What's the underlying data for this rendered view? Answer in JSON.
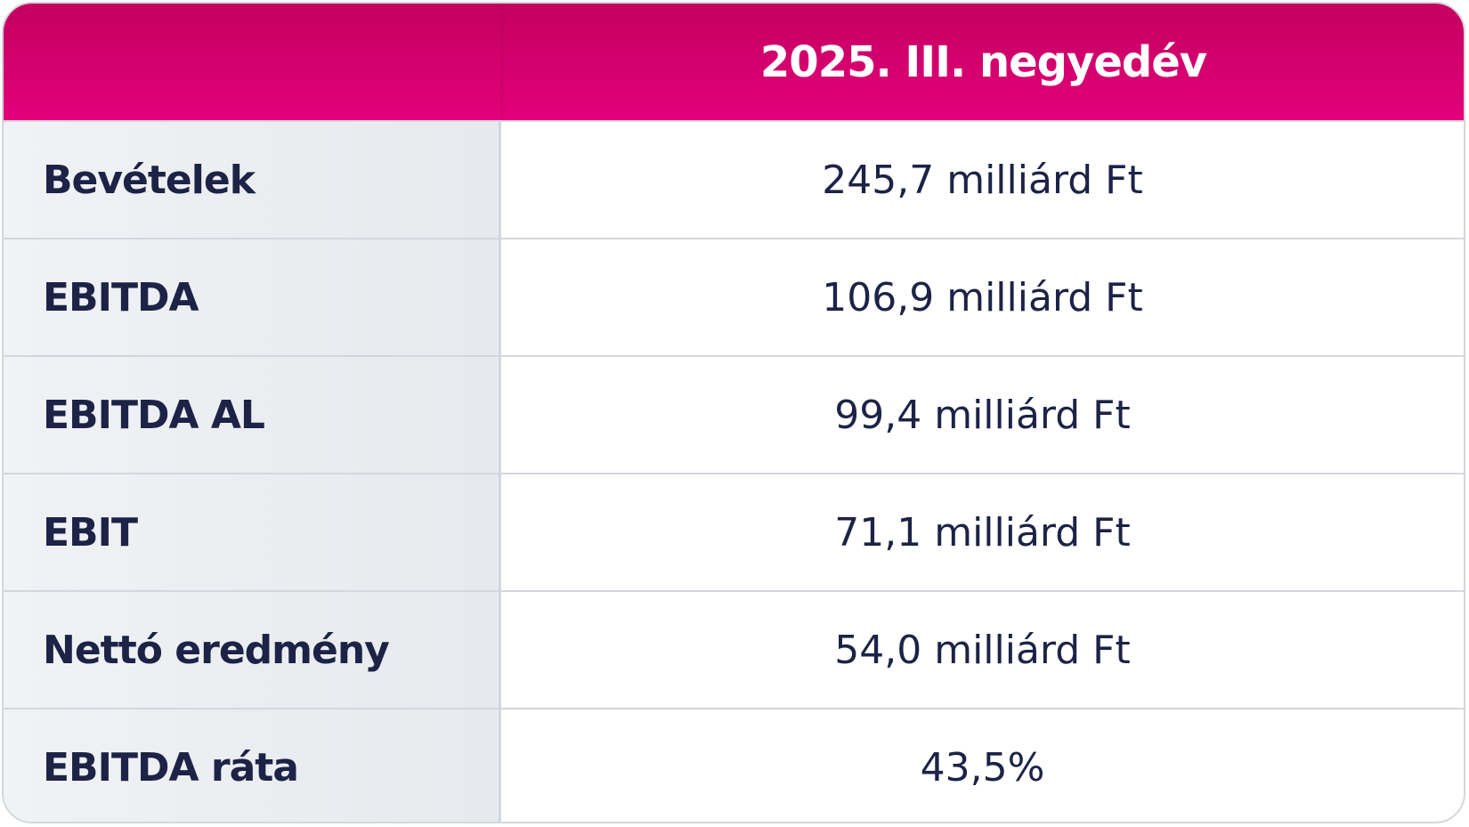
{
  "header": {
    "title": "2025. III. negyedév"
  },
  "table": {
    "rows": [
      [
        "Bevételek",
        "245,7 milliárd Ft"
      ],
      [
        "EBITDA",
        "106,9 milliárd Ft"
      ],
      [
        "EBITDA AL",
        "99,4 milliárd Ft"
      ],
      [
        "EBIT",
        "71,1 milliárd Ft"
      ],
      [
        "Nettó eredmény",
        "54,0 milliárd Ft"
      ],
      [
        "EBITDA ráta",
        "43,5%"
      ]
    ]
  }
}
